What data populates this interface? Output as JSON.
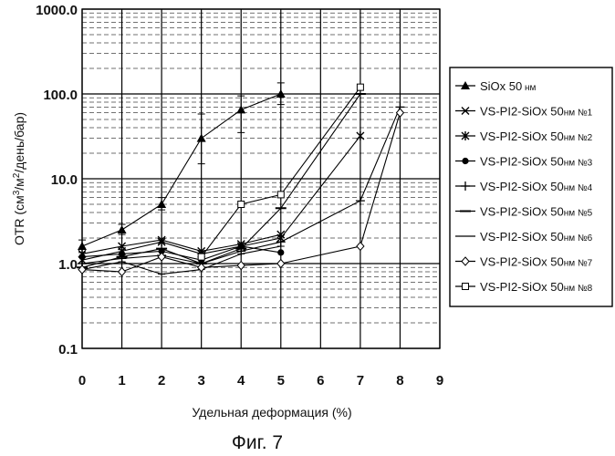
{
  "chart_data": {
    "type": "line",
    "yscale": "log",
    "ylim": [
      0.1,
      1000
    ],
    "xlim": [
      0,
      9
    ],
    "x_ticks": [
      "0",
      "1",
      "2",
      "3",
      "4",
      "5",
      "6",
      "7",
      "8",
      "9"
    ],
    "y_ticks": [
      {
        "value": 0.1,
        "label": "0.1"
      },
      {
        "value": 1,
        "label": "1.0"
      },
      {
        "value": 10,
        "label": "10.0"
      },
      {
        "value": 100,
        "label": "100.0"
      },
      {
        "value": 1000,
        "label": "1000.0"
      }
    ],
    "ylabel_parts": [
      "OTR (см",
      "3",
      "/м",
      "2",
      "/день/бар)"
    ],
    "xlabel": "Удельная деформация (%)",
    "caption": "Фиг. 7",
    "series": [
      {
        "name": "SiOx 50 нм",
        "legend_main": "SiOx 50",
        "legend_small": " нм",
        "marker": "triangle",
        "x": [
          0,
          1,
          2,
          3,
          4,
          5
        ],
        "y": [
          1.6,
          2.5,
          5,
          30,
          65,
          100
        ],
        "err_low": [
          1.35,
          2.2,
          4.3,
          15,
          35,
          75
        ],
        "err_high": [
          1.9,
          2.9,
          6,
          58,
          95,
          135
        ]
      },
      {
        "name": "VS-PI2-SiOx 50нм №1",
        "legend_main": "VS-PI2-SiOx 50",
        "legend_small": "нм №1",
        "marker": "x",
        "x": [
          0,
          1,
          2,
          3,
          4,
          5
        ],
        "y": [
          1.3,
          1.6,
          1.9,
          1.4,
          1.7,
          2.2
        ]
      },
      {
        "name": "VS-PI2-SiOx 50нм №2",
        "legend_main": "VS-PI2-SiOx 50",
        "legend_small": "нм №2",
        "marker": "asterisk",
        "x": [
          0,
          1,
          2,
          3,
          4,
          5,
          7
        ],
        "y": [
          1.1,
          1.4,
          1.8,
          1.3,
          1.6,
          2.0,
          32
        ]
      },
      {
        "name": "VS-PI2-SiOx 50нм №3",
        "legend_main": "VS-PI2-SiOx 50",
        "legend_small": "нм №3",
        "marker": "dot",
        "x": [
          0,
          1,
          2,
          3,
          4,
          5
        ],
        "y": [
          1.2,
          1.3,
          1.4,
          1.1,
          1.6,
          1.35
        ]
      },
      {
        "name": "VS-PI2-SiOx 50нм №4",
        "legend_main": "VS-PI2-SiOx 50",
        "legend_small": "нм №4",
        "marker": "plus",
        "x": [
          0,
          1,
          2,
          3,
          4,
          5,
          7,
          8
        ],
        "y": [
          1.0,
          1.15,
          1.25,
          1.0,
          1.4,
          1.8,
          5.5,
          70
        ]
      },
      {
        "name": "VS-PI2-SiOx 50нм №5",
        "legend_main": "VS-PI2-SiOx 50",
        "legend_small": "нм №5",
        "marker": "dash",
        "x": [
          0,
          1,
          2,
          3,
          4,
          5,
          7
        ],
        "y": [
          0.9,
          1.2,
          1.5,
          1.0,
          1.5,
          4.5,
          100
        ]
      },
      {
        "name": "VS-PI2-SiOx 50нм №6",
        "legend_main": "VS-PI2-SiOx 50",
        "legend_small": "нм №6",
        "marker": "line",
        "x": [
          0,
          1,
          2,
          3,
          4,
          5
        ],
        "y": [
          0.85,
          1.05,
          0.75,
          0.85,
          1.3,
          1.6
        ]
      },
      {
        "name": "VS-PI2-SiOx 50нм №7",
        "legend_main": "VS-PI2-SiOx 50",
        "legend_small": "нм №7",
        "marker": "diamond",
        "x": [
          0,
          1,
          2,
          3,
          4,
          5,
          7,
          8
        ],
        "y": [
          0.85,
          0.8,
          1.2,
          0.9,
          0.95,
          1.0,
          1.6,
          60
        ]
      },
      {
        "name": "VS-PI2-SiOx 50нм №8",
        "legend_main": "VS-PI2-SiOx 50",
        "legend_small": "нм №8",
        "marker": "square",
        "x": [
          3,
          4,
          5,
          7
        ],
        "y": [
          1.2,
          5.0,
          6.5,
          120
        ]
      }
    ]
  }
}
